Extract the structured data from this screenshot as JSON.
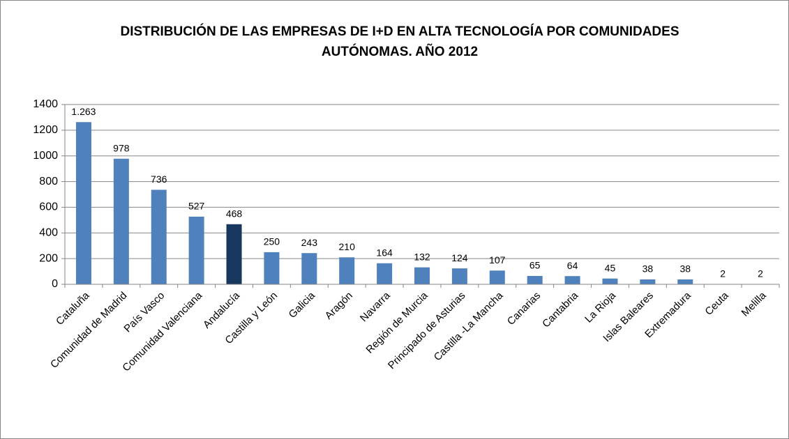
{
  "chart_data": {
    "type": "bar",
    "title_lines": [
      "DISTRIBUCIÓN  DE LAS EMPRESAS DE I+D EN ALTA TECNOLOGÍA POR COMUNIDADES",
      "AUTÓNOMAS.  AÑO 2012"
    ],
    "categories": [
      "Cataluña",
      "Comunidad de Madrid",
      "País Vasco",
      "Comunidad Valenciana",
      "Andalucía",
      "Castilla y León",
      "Galicia",
      "Aragón",
      "Navarra",
      "Región de Murcia",
      "Principado de Asturias",
      "Castilla -La Mancha",
      "Canarias",
      "Cantabria",
      "La Rioja",
      "Islas Baleares",
      "Extremadura",
      "Ceuta",
      "Melilla"
    ],
    "values": [
      1263,
      978,
      736,
      527,
      468,
      250,
      243,
      210,
      164,
      132,
      124,
      107,
      65,
      64,
      45,
      38,
      38,
      2,
      2
    ],
    "value_labels": [
      "1.263",
      "978",
      "736",
      "527",
      "468",
      "250",
      "243",
      "210",
      "164",
      "132",
      "124",
      "107",
      "65",
      "64",
      "45",
      "38",
      "38",
      "2",
      "2"
    ],
    "colors": [
      "#4f81bd",
      "#4f81bd",
      "#4f81bd",
      "#4f81bd",
      "#17375e",
      "#4f81bd",
      "#4f81bd",
      "#4f81bd",
      "#4f81bd",
      "#4f81bd",
      "#4f81bd",
      "#4f81bd",
      "#4f81bd",
      "#4f81bd",
      "#4f81bd",
      "#4f81bd",
      "#4f81bd",
      "#4f81bd",
      "#4f81bd"
    ],
    "ylim": [
      0,
      1400
    ],
    "yticks": [
      0,
      200,
      400,
      600,
      800,
      1000,
      1200,
      1400
    ],
    "grid": true
  }
}
